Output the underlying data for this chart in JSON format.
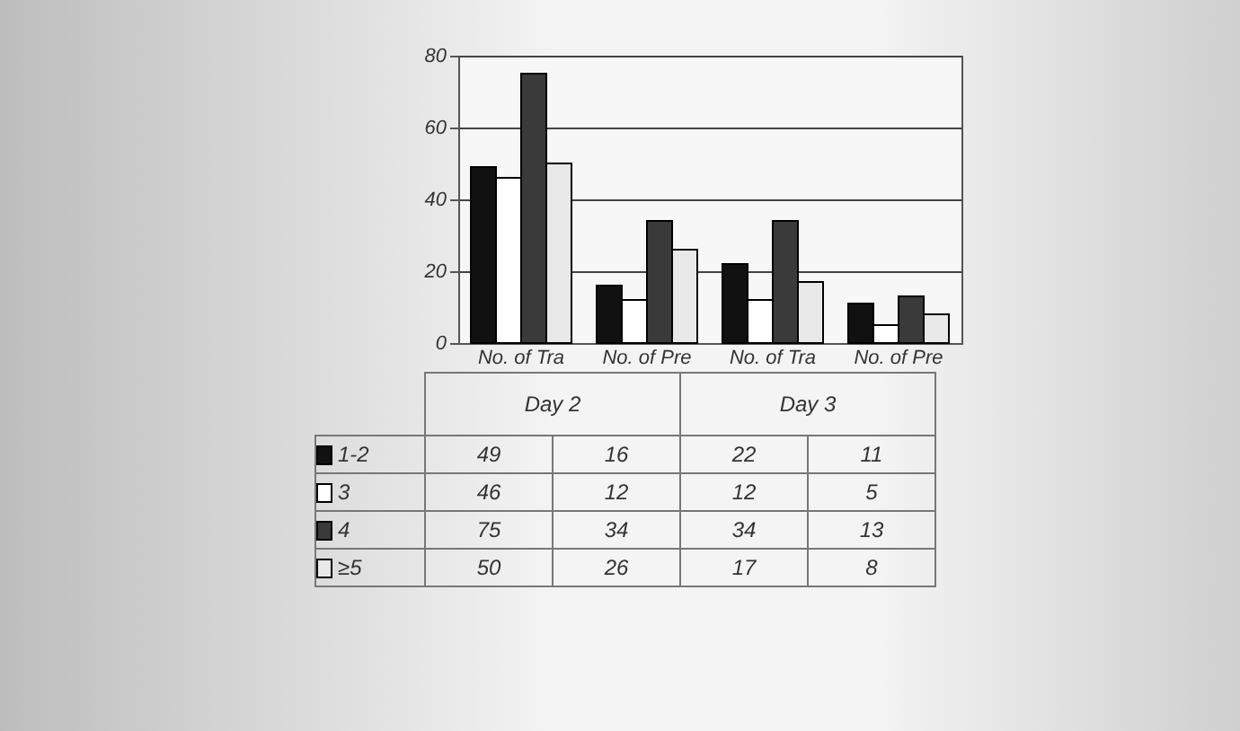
{
  "chart_data": {
    "type": "bar",
    "categories": [
      "No. of Tra",
      "No. of Pre",
      "No. of Tra",
      "No. of Pre"
    ],
    "annotations": [
      "Day 2",
      "Day 3"
    ],
    "series": [
      {
        "name": "1-2",
        "color": "#111111",
        "values": [
          49,
          16,
          22,
          11
        ]
      },
      {
        "name": "3",
        "color": "#ffffff",
        "values": [
          46,
          12,
          12,
          5
        ]
      },
      {
        "name": "4",
        "color": "#3a3a3a",
        "values": [
          75,
          34,
          34,
          13
        ]
      },
      {
        "name": "≥5",
        "color": "#e8e8e8",
        "values": [
          50,
          26,
          17,
          8
        ]
      }
    ],
    "ylim": [
      0,
      80
    ],
    "yticks": [
      0,
      20,
      40,
      60,
      80
    ],
    "grid": "y",
    "data_labels": true,
    "legend": "bottom"
  }
}
